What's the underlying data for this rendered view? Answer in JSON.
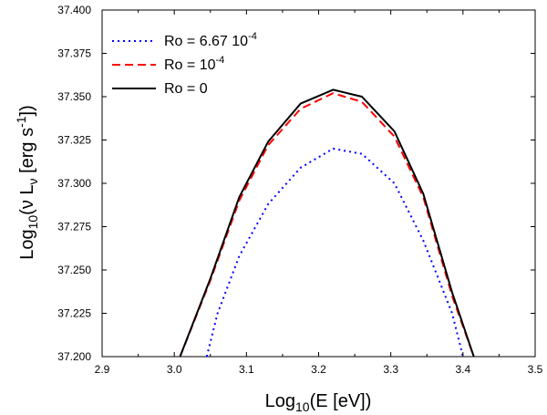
{
  "chart_data": {
    "type": "line",
    "title": "",
    "xlabel": {
      "pre": "Log",
      "sub": "10",
      "post": "(E [eV])"
    },
    "ylabel": {
      "pre": "Log",
      "sub": "10",
      "mid": "(ν L",
      "sub2": "ν",
      "mid2": " [erg s",
      "sup": "-1",
      "post": "])"
    },
    "xlim": [
      2.9,
      3.5
    ],
    "ylim": [
      37.2,
      37.4
    ],
    "xticks": [
      "2.9",
      "3.0",
      "3.1",
      "3.2",
      "3.3",
      "3.4",
      "3.5"
    ],
    "yticks": [
      "37.200",
      "37.225",
      "37.250",
      "37.275",
      "37.300",
      "37.325",
      "37.350",
      "37.375",
      "37.400"
    ],
    "legend_position": "top-left",
    "series": [
      {
        "name": "Ro = 6.67 10",
        "name_sup": "-4",
        "style": "dotted",
        "color": "#0000ff",
        "x": [
          3.045,
          3.06,
          3.09,
          3.13,
          3.175,
          3.22,
          3.26,
          3.305,
          3.345,
          3.385,
          3.4
        ],
        "y": [
          37.2,
          37.225,
          37.258,
          37.288,
          37.309,
          37.32,
          37.317,
          37.3,
          37.267,
          37.225,
          37.2
        ]
      },
      {
        "name": "Ro = 10",
        "name_sup": "-4",
        "style": "dashed",
        "color": "#ff0000",
        "x": [
          3.008,
          3.05,
          3.09,
          3.13,
          3.175,
          3.22,
          3.26,
          3.305,
          3.345,
          3.385,
          3.415
        ],
        "y": [
          37.2,
          37.244,
          37.29,
          37.322,
          37.343,
          37.352,
          37.347,
          37.327,
          37.292,
          37.235,
          37.2
        ]
      },
      {
        "name": "Ro = 0",
        "name_sup": "",
        "style": "solid",
        "color": "#000000",
        "x": [
          3.008,
          3.05,
          3.09,
          3.13,
          3.175,
          3.22,
          3.26,
          3.305,
          3.345,
          3.385,
          3.415
        ],
        "y": [
          37.2,
          37.245,
          37.292,
          37.324,
          37.346,
          37.354,
          37.35,
          37.33,
          37.294,
          37.237,
          37.2
        ]
      }
    ]
  }
}
